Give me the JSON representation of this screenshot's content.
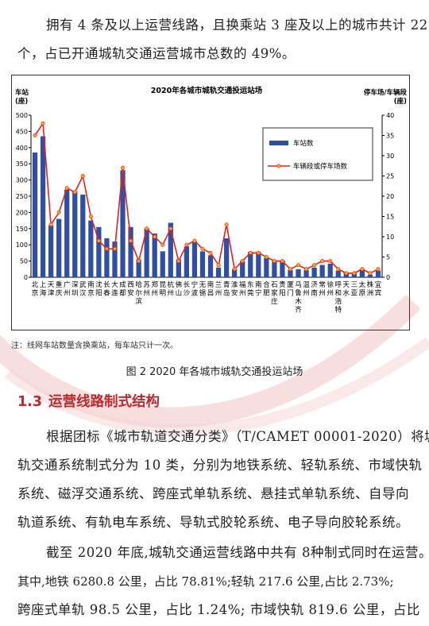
{
  "intro": {
    "lines": [
      "拥有 4 条及以上运营线路，且换乘站 3 座及以上的城市共计 22",
      "个，占已开通城轨交通运营城市总数的 49%。"
    ]
  },
  "figure": {
    "footnote": "注：线网车站数量含换乘站，每车站只计一次。",
    "caption": "图 2   2020 年各城市城轨交通投运站场"
  },
  "section": {
    "number": "1.3",
    "title": "运营线路制式结构"
  },
  "body_paragraphs": [
    {
      "lines": [
        "根据团标《城市轨道交通分类》（T/CAMET 00001-2020）将城",
        "轨交通系统制式分为 10 类，分别为地铁系统、轻轨系统、市域快轨",
        "系统、磁浮交通系统、跨座式单轨系统、悬挂式单轨系统、自导向",
        "轨道系统、有轨电车系统、导轨式胶轮系统、电子导向胶轮系统。"
      ]
    },
    {
      "lines": [
        "截至 2020 年底,城轨交通运营线路中共有 8种制式同时在运营。",
        "其中,地铁 6280.8 公里，占比 78.81%;轻轨 217.6 公里,占比 2.73%;",
        "跨座式单轨 98.5 公里，占比 1.24%; 市域快轨 819.6 公里，占比"
      ]
    }
  ],
  "chart_data": {
    "type": "bar",
    "title": "2020年各城市城轨交通投运站场",
    "ylabel_left": [
      "车站",
      "(座)"
    ],
    "ylabel_right": [
      "停车场/车辆段",
      "(座)"
    ],
    "ylim_left": [
      0,
      500
    ],
    "yticks_left": [
      0,
      50,
      100,
      150,
      200,
      250,
      300,
      350,
      400,
      450,
      500
    ],
    "ylim_right": [
      0,
      40
    ],
    "yticks_right": [
      0,
      5,
      10,
      15,
      20,
      25,
      30,
      35,
      40
    ],
    "legend_position": "top-right",
    "colors": {
      "bar": "#2e4fa3",
      "line": "#e2231a",
      "marker": "#f5a623"
    },
    "categories": [
      "北京",
      "上海",
      "天津",
      "重庆",
      "广州",
      "深圳",
      "武汉",
      "南京",
      "沈阳",
      "长春",
      "大连",
      "成都",
      "西安",
      "哈尔滨",
      "苏州",
      "郑州",
      "昆明",
      "杭州",
      "佛山",
      "长沙",
      "宁波",
      "无锡",
      "南昌",
      "兰州",
      "青岛",
      "淮安",
      "福州",
      "东莞",
      "南宁",
      "合肥",
      "石家庄",
      "贵阳",
      "厦门",
      "乌鲁木齐",
      "温州",
      "济南",
      "常州",
      "徐州",
      "呼和浩特",
      "天水",
      "三亚",
      "太原",
      "株洲",
      "宜宾"
    ],
    "category_labels": [
      "北京",
      "上海",
      "天津",
      "重庆",
      "广州",
      "深圳",
      "武汉",
      "南京",
      "沈阳",
      "长春",
      "大连",
      "成都",
      "西安",
      "哈尔滨",
      "苏州",
      "郑州",
      "昆明",
      "杭州",
      "佛山",
      "长沙",
      "宁波",
      "无锡",
      "南昌",
      "兰州",
      "青岛",
      "淮安",
      "福州",
      "东莞",
      "南宁",
      "合肥",
      "石家庄",
      "贵阳",
      "厦门",
      "乌鲁木齐",
      "温州",
      "济南",
      "常州",
      "徐州",
      "呼和浩特",
      "天水",
      "三亚",
      "太原",
      "株洲",
      "宜宾"
    ],
    "series": [
      {
        "name": "车站数",
        "type": "bar",
        "axis": "left",
        "values": [
          385,
          435,
          160,
          180,
          270,
          265,
          255,
          175,
          155,
          120,
          110,
          330,
          155,
          55,
          150,
          135,
          80,
          168,
          55,
          95,
          110,
          80,
          68,
          30,
          120,
          25,
          50,
          78,
          78,
          60,
          50,
          52,
          22,
          25,
          22,
          30,
          38,
          42,
          20,
          15,
          12,
          25,
          8,
          20
        ]
      },
      {
        "name": "车辆段或停车场数",
        "type": "line",
        "axis": "right",
        "values": [
          35,
          38,
          13,
          16,
          22,
          21,
          25,
          15,
          9,
          7,
          7,
          27,
          9,
          4,
          12,
          10,
          8,
          12,
          4,
          8,
          9,
          7,
          6,
          3,
          13,
          2,
          4,
          6,
          6,
          5,
          4,
          4,
          2,
          3,
          2,
          3,
          4,
          4,
          2,
          1,
          1,
          2,
          1,
          2
        ]
      }
    ]
  }
}
